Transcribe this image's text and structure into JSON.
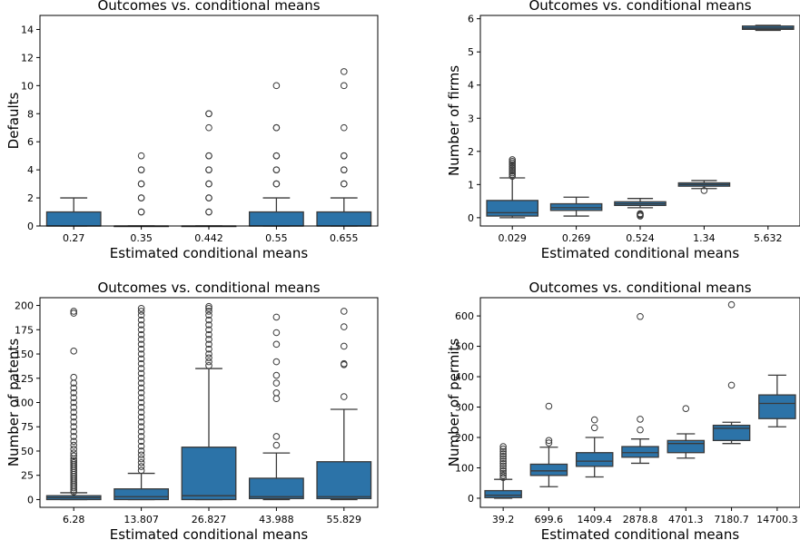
{
  "colors": {
    "box_fill": "#2c73a8",
    "line": "#3a3a3a",
    "axis": "#000000"
  },
  "chart_data": [
    {
      "type": "box",
      "title": "Outcomes vs. conditional means",
      "xlabel": "Estimated conditional means",
      "ylabel": "Defaults",
      "ylim": [
        0,
        15
      ],
      "yticks": [
        0,
        2,
        4,
        6,
        8,
        10,
        12,
        14
      ],
      "categories": [
        "0.27",
        "0.35",
        "0.442",
        "0.55",
        "0.655"
      ],
      "boxes": [
        {
          "q1": 0,
          "median": 0,
          "q3": 1,
          "whislo": 0,
          "whishi": 2,
          "fliers": []
        },
        {
          "q1": 0,
          "median": 0,
          "q3": 0,
          "whislo": 0,
          "whishi": 0,
          "fliers": [
            1,
            1,
            2,
            2,
            3,
            3,
            4,
            4,
            5
          ]
        },
        {
          "q1": 0,
          "median": 0,
          "q3": 0,
          "whislo": 0,
          "whishi": 0,
          "fliers": [
            1,
            1,
            2,
            2,
            3,
            3,
            4,
            4,
            5,
            5,
            7,
            8,
            8
          ]
        },
        {
          "q1": 0,
          "median": 0,
          "q3": 1,
          "whislo": 0,
          "whishi": 2,
          "fliers": [
            3,
            3,
            4,
            4,
            5,
            5,
            7,
            7,
            10
          ]
        },
        {
          "q1": 0,
          "median": 0,
          "q3": 1,
          "whislo": 0,
          "whishi": 2,
          "fliers": [
            3,
            3,
            4,
            4,
            5,
            5,
            7,
            10,
            11
          ]
        }
      ]
    },
    {
      "type": "box",
      "title": "Outcomes vs. conditional means",
      "xlabel": "Estimated conditional means",
      "ylabel": "Number of firms",
      "ylim": [
        -0.25,
        6.1
      ],
      "yticks": [
        0,
        1,
        2,
        3,
        4,
        5,
        6
      ],
      "categories": [
        "0.029",
        "0.269",
        "0.524",
        "1.34",
        "5.632"
      ],
      "boxes": [
        {
          "q1": 0.05,
          "median": 0.15,
          "q3": 0.52,
          "whislo": 0.0,
          "whishi": 1.2,
          "fliers": [
            1.25,
            1.3,
            1.35,
            1.4,
            1.45,
            1.5,
            1.55,
            1.6,
            1.65,
            1.7,
            1.75
          ]
        },
        {
          "q1": 0.22,
          "median": 0.3,
          "q3": 0.42,
          "whislo": 0.05,
          "whishi": 0.62,
          "fliers": []
        },
        {
          "q1": 0.37,
          "median": 0.42,
          "q3": 0.48,
          "whislo": 0.3,
          "whishi": 0.58,
          "fliers": [
            0.05,
            0.08,
            0.1,
            0.12
          ]
        },
        {
          "q1": 0.95,
          "median": 1.0,
          "q3": 1.05,
          "whislo": 0.88,
          "whishi": 1.12,
          "fliers": [
            0.82
          ]
        },
        {
          "q1": 5.68,
          "median": 5.72,
          "q3": 5.78,
          "whislo": 5.65,
          "whishi": 5.8,
          "fliers": []
        }
      ]
    },
    {
      "type": "box",
      "title": "Outcomes vs. conditional means",
      "xlabel": "Estimated conditional means",
      "ylabel": "Number of patents",
      "ylim": [
        -8,
        208
      ],
      "yticks": [
        0,
        25,
        50,
        75,
        100,
        125,
        150,
        175,
        200
      ],
      "categories": [
        "6.28",
        "13.807",
        "26.827",
        "43.988",
        "55.829"
      ],
      "boxes": [
        {
          "q1": 0,
          "median": 2,
          "q3": 4,
          "whislo": 0,
          "whishi": 7,
          "fliers": [
            8,
            10,
            12,
            14,
            16,
            18,
            20,
            22,
            24,
            26,
            28,
            30,
            32,
            34,
            36,
            38,
            40,
            42,
            45,
            48,
            52,
            56,
            60,
            65,
            70,
            75,
            80,
            85,
            90,
            95,
            100,
            105,
            110,
            115,
            120,
            126,
            153,
            192,
            194
          ]
        },
        {
          "q1": 0,
          "median": 3,
          "q3": 11,
          "whislo": 0,
          "whishi": 27,
          "fliers": [
            30,
            34,
            38,
            42,
            46,
            50,
            55,
            60,
            65,
            70,
            75,
            80,
            85,
            90,
            95,
            100,
            105,
            110,
            115,
            120,
            125,
            130,
            135,
            140,
            145,
            150,
            155,
            160,
            165,
            170,
            175,
            180,
            185,
            190,
            194,
            197
          ]
        },
        {
          "q1": 0,
          "median": 4,
          "q3": 54,
          "whislo": 0,
          "whishi": 135,
          "fliers": [
            138,
            142,
            146,
            150,
            155,
            160,
            165,
            170,
            175,
            180,
            185,
            190,
            194,
            197,
            199
          ]
        },
        {
          "q1": 1,
          "median": 3,
          "q3": 22,
          "whislo": 0,
          "whishi": 48,
          "fliers": [
            56,
            65,
            104,
            110,
            120,
            128,
            142,
            160,
            172,
            188
          ]
        },
        {
          "q1": 1,
          "median": 3,
          "q3": 39,
          "whislo": 0,
          "whishi": 93,
          "fliers": [
            106,
            139,
            140,
            158,
            178,
            194
          ]
        }
      ]
    },
    {
      "type": "box",
      "title": "Outcomes vs. conditional means",
      "xlabel": "Estimated conditional means",
      "ylabel": "Number of permits",
      "ylim": [
        -30,
        660
      ],
      "yticks": [
        0,
        100,
        200,
        300,
        400,
        500,
        600
      ],
      "categories": [
        "39.2",
        "699.6",
        "1409.4",
        "2878.8",
        "4701.3",
        "7180.7",
        "14700.3"
      ],
      "boxes": [
        {
          "q1": 2,
          "median": 10,
          "q3": 25,
          "whislo": 0,
          "whishi": 62,
          "fliers": [
            68,
            75,
            82,
            90,
            98,
            106,
            114,
            122,
            130,
            138,
            146,
            154,
            162,
            170
          ]
        },
        {
          "q1": 75,
          "median": 90,
          "q3": 112,
          "whislo": 38,
          "whishi": 168,
          "fliers": [
            182,
            190,
            303
          ]
        },
        {
          "q1": 105,
          "median": 122,
          "q3": 150,
          "whislo": 70,
          "whishi": 200,
          "fliers": [
            232,
            258
          ]
        },
        {
          "q1": 135,
          "median": 150,
          "q3": 170,
          "whislo": 115,
          "whishi": 195,
          "fliers": [
            225,
            260,
            598
          ]
        },
        {
          "q1": 150,
          "median": 180,
          "q3": 190,
          "whislo": 132,
          "whishi": 212,
          "fliers": [
            295
          ]
        },
        {
          "q1": 190,
          "median": 230,
          "q3": 240,
          "whislo": 180,
          "whishi": 250,
          "fliers": [
            372,
            637
          ]
        },
        {
          "q1": 262,
          "median": 312,
          "q3": 340,
          "whislo": 235,
          "whishi": 405,
          "fliers": []
        }
      ]
    }
  ]
}
